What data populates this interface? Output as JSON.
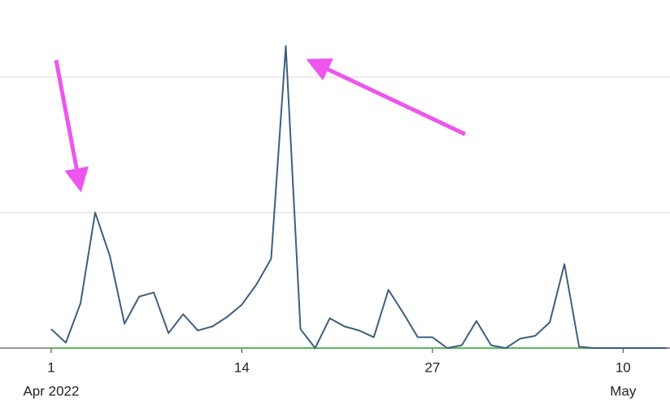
{
  "chart_data": {
    "type": "line",
    "x": [
      1,
      2,
      3,
      4,
      5,
      6,
      7,
      8,
      9,
      10,
      11,
      12,
      13,
      14,
      15,
      16,
      17,
      18,
      19,
      20,
      21,
      22,
      23,
      24,
      25,
      26,
      27,
      28,
      29,
      30,
      31,
      32,
      33,
      34,
      35,
      36,
      37,
      38,
      39,
      40,
      41,
      42,
      43
    ],
    "series": [
      {
        "color": "#3e5f7e",
        "values": [
          1.4,
          0.4,
          3.3,
          10.0,
          6.8,
          1.8,
          3.8,
          4.1,
          1.1,
          2.5,
          1.3,
          1.6,
          2.3,
          3.2,
          4.7,
          6.6,
          22.3,
          1.4,
          0,
          2.2,
          1.6,
          1.3,
          0.8,
          4.3,
          2.6,
          0.8,
          0.8,
          0,
          0.2,
          2.0,
          0.2,
          0,
          0.7,
          0.9,
          1.9,
          6.2,
          0.1,
          0,
          0,
          0,
          0,
          0,
          0
        ]
      },
      {
        "color": "#5cb85c",
        "values": [
          0,
          0,
          0,
          0,
          0,
          0,
          0,
          0,
          0,
          0,
          0,
          0,
          0,
          0,
          0,
          0,
          0,
          0,
          0,
          0,
          0,
          0,
          0,
          0,
          0,
          0,
          0,
          0,
          0,
          0,
          0,
          0,
          0,
          0,
          0,
          0,
          0,
          0,
          0,
          0,
          0,
          0,
          0
        ]
      }
    ],
    "xlim": [
      -2.49,
      43.2
    ],
    "ylim": [
      0,
      25.7
    ],
    "xticks": [
      1,
      14,
      27,
      {
        "value": 40,
        "label": "10"
      }
    ],
    "xtick_sublabels": [
      {
        "value": 1,
        "label": "Apr 2022"
      },
      {
        "value": 40,
        "label": "May"
      }
    ],
    "gridlines": [
      10,
      20
    ],
    "grid": true
  }
}
